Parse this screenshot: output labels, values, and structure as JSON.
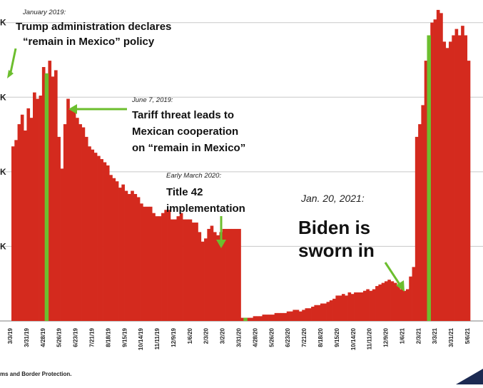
{
  "chart_data": {
    "type": "bar",
    "title": "",
    "xlabel": "",
    "ylabel": "",
    "ylim": [
      0,
      100
    ],
    "y_tick_labels": [
      "K",
      "K",
      "K",
      "K"
    ],
    "x_tick_labels": [
      "3/3/19",
      "3/31/19",
      "4/28/19",
      "5/26/19",
      "6/23/19",
      "7/21/19",
      "8/18/19",
      "9/15/19",
      "10/14/19",
      "11/11/19",
      "12/9/19",
      "1/6/20",
      "2/3/20",
      "3/2/20",
      "3/31/20",
      "4/28/20",
      "5/26/20",
      "6/23/20",
      "7/21/20",
      "8/18/20",
      "9/15/20",
      "10/14/20",
      "11/11/20",
      "12/9/20",
      "1/6/21",
      "2/3/21",
      "3/3/21",
      "3/31/21",
      "5/6/21"
    ],
    "values": [
      55,
      57,
      62,
      65,
      60,
      67,
      64,
      72,
      70,
      71,
      80,
      78,
      82,
      77,
      79,
      58,
      48,
      62,
      70,
      67,
      66,
      64,
      62,
      61,
      58,
      55,
      54,
      53,
      52,
      51,
      50,
      49,
      46,
      45,
      44,
      42,
      43,
      41,
      40,
      41,
      40,
      39,
      37,
      36,
      36,
      36,
      34,
      33,
      33,
      34,
      35,
      35,
      32,
      32,
      33,
      34,
      32,
      32,
      32,
      31,
      31,
      28,
      25,
      26,
      29,
      30,
      28,
      27,
      28,
      29,
      29,
      29,
      29,
      29,
      29,
      1,
      1,
      1,
      1,
      1.5,
      1.5,
      1.5,
      2,
      2,
      2,
      2,
      2.5,
      2.5,
      2.5,
      2.5,
      3,
      3,
      3.5,
      3.5,
      3,
      3.5,
      4,
      4,
      4.5,
      5,
      5,
      5.5,
      5.5,
      6,
      6.5,
      7,
      8,
      8,
      8.5,
      8,
      9,
      8.5,
      9,
      9,
      9,
      9.5,
      10,
      9.5,
      10,
      11,
      11.5,
      12,
      12.5,
      13,
      12.5,
      12,
      11,
      10,
      9.5,
      10,
      14,
      17,
      58,
      62,
      68,
      82,
      90,
      94,
      95,
      98,
      97,
      88,
      86,
      88,
      90,
      92,
      90,
      93,
      90,
      82
    ],
    "highlight_indices": [
      11,
      76,
      136
    ],
    "bar_color": "#d42a1e",
    "highlight_color": "#6cbe2e",
    "annotations": [
      {
        "date": "January 2019:",
        "text_lines": [
          "Trump administration declares",
          "“remain in Mexico” policy"
        ]
      },
      {
        "date": "June 7, 2019:",
        "text_lines": [
          "Tariff threat leads to",
          "Mexican cooperation",
          "on “remain in Mexico”"
        ]
      },
      {
        "date": "Early March 2020:",
        "text_lines": [
          "Title 42",
          "implementation"
        ]
      },
      {
        "date": "Jan. 20, 2021:",
        "text_lines": [
          "Biden is",
          "sworn in"
        ]
      }
    ]
  },
  "source_text": "ms and Border Protection."
}
